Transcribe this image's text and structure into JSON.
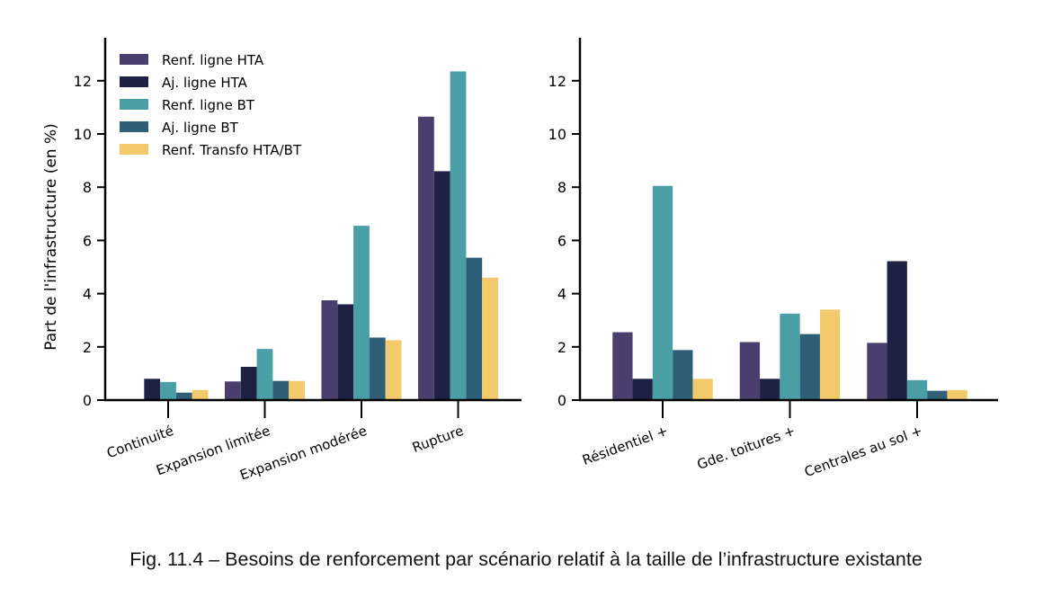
{
  "caption": "Fig. 11.4 – Besoins de renforcement par scénario relatif à la taille de l’infrastructure existante",
  "legend": {
    "placement": "top-left",
    "entries": [
      {
        "label": "Renf. ligne HTA",
        "color": "#4a3e6e"
      },
      {
        "label": "Aj. ligne HTA",
        "color": "#1f2144"
      },
      {
        "label": "Renf. ligne BT",
        "color": "#4a9fa6"
      },
      {
        "label": "Aj. ligne BT",
        "color": "#2e5f76"
      },
      {
        "label": "Renf. Transfo HTA/BT",
        "color": "#f2c96b"
      }
    ]
  },
  "chart_data": [
    {
      "type": "bar",
      "ylabel": "Part de l'infrastructure (en %)",
      "xlabel": "",
      "ylim": [
        0,
        13.6
      ],
      "yticks": [
        "0",
        "2",
        "4",
        "6",
        "8",
        "10",
        "12"
      ],
      "grid": false,
      "categories": [
        "Continuité",
        "Expansion limitée",
        "Expansion modérée",
        "Rupture"
      ],
      "series": [
        {
          "name": "Renf. ligne HTA",
          "values": [
            0.0,
            0.7,
            3.75,
            10.65
          ]
        },
        {
          "name": "Aj. ligne HTA",
          "values": [
            0.8,
            1.25,
            3.6,
            8.6
          ]
        },
        {
          "name": "Renf. ligne BT",
          "values": [
            0.68,
            1.92,
            6.55,
            12.35
          ]
        },
        {
          "name": "Aj. ligne BT",
          "values": [
            0.28,
            0.72,
            2.35,
            5.35
          ]
        },
        {
          "name": "Renf. Transfo HTA/BT",
          "values": [
            0.38,
            0.72,
            2.25,
            4.6
          ]
        }
      ]
    },
    {
      "type": "bar",
      "ylabel": "",
      "xlabel": "",
      "ylim": [
        0,
        13.6
      ],
      "yticks": [
        "0",
        "2",
        "4",
        "6",
        "8",
        "10",
        "12"
      ],
      "grid": false,
      "categories": [
        "Résidentiel +",
        "Gde. toitures +",
        "Centrales au sol +"
      ],
      "series": [
        {
          "name": "Renf. ligne HTA",
          "values": [
            2.55,
            2.18,
            2.15
          ]
        },
        {
          "name": "Aj. ligne HTA",
          "values": [
            0.8,
            0.8,
            5.22
          ]
        },
        {
          "name": "Renf. ligne BT",
          "values": [
            8.05,
            3.25,
            0.75
          ]
        },
        {
          "name": "Aj. ligne BT",
          "values": [
            1.88,
            2.48,
            0.35
          ]
        },
        {
          "name": "Renf. Transfo HTA/BT",
          "values": [
            0.8,
            3.4,
            0.38
          ]
        }
      ]
    }
  ]
}
